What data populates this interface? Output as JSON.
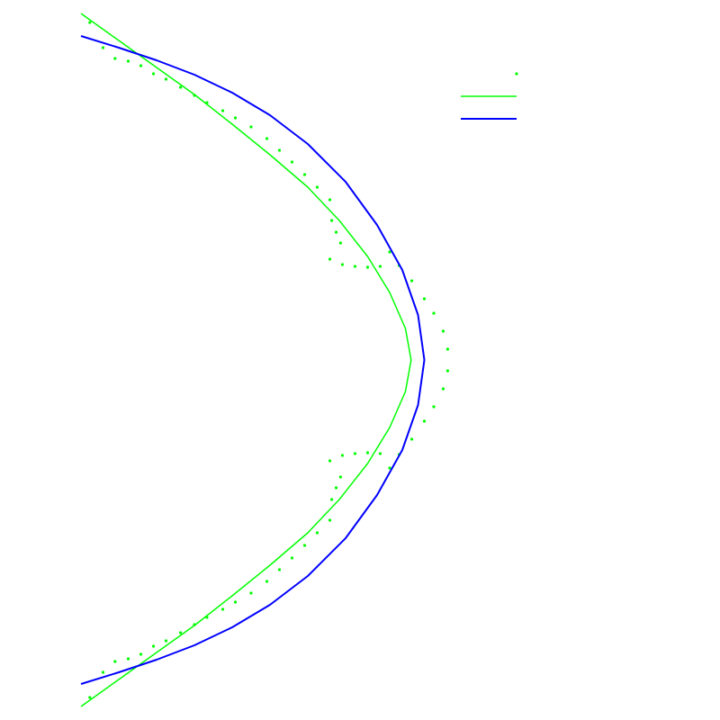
{
  "chart_data": {
    "type": "line",
    "title": "",
    "xlabel": "",
    "ylabel": "",
    "xlim": [
      0,
      9
    ],
    "ylim": [
      -4,
      4
    ],
    "grid": false,
    "axes_visible": false,
    "legend": {
      "placement": "top-right",
      "entries": [
        {
          "name": "",
          "marker": "dot",
          "color": "#00ff00"
        },
        {
          "name": "",
          "marker": "line",
          "color": "#00ff00"
        },
        {
          "name": "",
          "marker": "line",
          "color": "#0000ff"
        }
      ]
    },
    "series": [
      {
        "style": "dots",
        "color": "#00ff00",
        "points": [
          [
            0.14,
            3.75
          ],
          [
            0.35,
            3.47
          ],
          [
            0.54,
            3.35
          ],
          [
            0.75,
            3.32
          ],
          [
            0.95,
            3.27
          ],
          [
            1.15,
            3.18
          ],
          [
            1.35,
            3.12
          ],
          [
            1.58,
            3.03
          ],
          [
            1.8,
            2.94
          ],
          [
            2.0,
            2.86
          ],
          [
            2.25,
            2.77
          ],
          [
            2.45,
            2.69
          ],
          [
            2.7,
            2.59
          ],
          [
            2.95,
            2.46
          ],
          [
            3.15,
            2.33
          ],
          [
            3.35,
            2.2
          ],
          [
            3.55,
            2.06
          ],
          [
            3.75,
            1.92
          ],
          [
            3.95,
            1.78
          ],
          [
            3.98,
            1.55
          ],
          [
            4.05,
            1.42
          ],
          [
            4.12,
            1.3
          ],
          [
            3.95,
            1.12
          ],
          [
            4.15,
            1.06
          ],
          [
            4.35,
            1.04
          ],
          [
            4.55,
            1.03
          ],
          [
            4.75,
            1.04
          ],
          [
            4.9,
            1.2
          ],
          [
            5.05,
            1.05
          ],
          [
            5.25,
            0.88
          ],
          [
            5.45,
            0.68
          ],
          [
            5.6,
            0.52
          ],
          [
            5.75,
            0.32
          ],
          [
            5.82,
            0.12
          ],
          [
            5.82,
            -0.12
          ],
          [
            5.75,
            -0.32
          ],
          [
            5.6,
            -0.52
          ],
          [
            5.45,
            -0.68
          ],
          [
            5.25,
            -0.88
          ],
          [
            5.05,
            -1.05
          ],
          [
            4.9,
            -1.2
          ],
          [
            4.75,
            -1.04
          ],
          [
            4.55,
            -1.03
          ],
          [
            4.35,
            -1.04
          ],
          [
            4.15,
            -1.06
          ],
          [
            3.95,
            -1.12
          ],
          [
            4.12,
            -1.3
          ],
          [
            4.05,
            -1.42
          ],
          [
            3.98,
            -1.55
          ],
          [
            3.95,
            -1.78
          ],
          [
            3.75,
            -1.92
          ],
          [
            3.55,
            -2.06
          ],
          [
            3.35,
            -2.2
          ],
          [
            3.15,
            -2.33
          ],
          [
            2.95,
            -2.46
          ],
          [
            2.7,
            -2.59
          ],
          [
            2.45,
            -2.69
          ],
          [
            2.25,
            -2.77
          ],
          [
            2.0,
            -2.86
          ],
          [
            1.8,
            -2.94
          ],
          [
            1.58,
            -3.03
          ],
          [
            1.35,
            -3.12
          ],
          [
            1.15,
            -3.18
          ],
          [
            0.95,
            -3.27
          ],
          [
            0.75,
            -3.32
          ],
          [
            0.54,
            -3.35
          ],
          [
            0.35,
            -3.47
          ],
          [
            0.14,
            -3.75
          ]
        ]
      },
      {
        "style": "line",
        "color": "#00ff00",
        "points": [
          [
            0.0,
            3.85
          ],
          [
            0.6,
            3.55
          ],
          [
            1.2,
            3.25
          ],
          [
            1.8,
            2.95
          ],
          [
            2.4,
            2.62
          ],
          [
            3.0,
            2.28
          ],
          [
            3.6,
            1.92
          ],
          [
            4.1,
            1.55
          ],
          [
            4.55,
            1.15
          ],
          [
            4.9,
            0.75
          ],
          [
            5.15,
            0.35
          ],
          [
            5.24,
            0.0
          ],
          [
            5.15,
            -0.35
          ],
          [
            4.9,
            -0.75
          ],
          [
            4.55,
            -1.15
          ],
          [
            4.1,
            -1.55
          ],
          [
            3.6,
            -1.92
          ],
          [
            3.0,
            -2.28
          ],
          [
            2.4,
            -2.62
          ],
          [
            1.8,
            -2.95
          ],
          [
            1.2,
            -3.25
          ],
          [
            0.6,
            -3.55
          ],
          [
            0.0,
            -3.85
          ]
        ]
      },
      {
        "style": "line",
        "color": "#0000ff",
        "points": [
          [
            0.0,
            3.6
          ],
          [
            0.6,
            3.47
          ],
          [
            1.2,
            3.33
          ],
          [
            1.8,
            3.17
          ],
          [
            2.4,
            2.97
          ],
          [
            3.0,
            2.72
          ],
          [
            3.6,
            2.4
          ],
          [
            4.2,
            1.98
          ],
          [
            4.7,
            1.5
          ],
          [
            5.1,
            1.0
          ],
          [
            5.35,
            0.5
          ],
          [
            5.45,
            0.0
          ],
          [
            5.35,
            -0.5
          ],
          [
            5.1,
            -1.0
          ],
          [
            4.7,
            -1.5
          ],
          [
            4.2,
            -1.98
          ],
          [
            3.6,
            -2.4
          ],
          [
            3.0,
            -2.72
          ],
          [
            2.4,
            -2.97
          ],
          [
            1.8,
            -3.17
          ],
          [
            1.2,
            -3.33
          ],
          [
            0.6,
            -3.47
          ],
          [
            0.0,
            -3.6
          ]
        ]
      }
    ]
  }
}
